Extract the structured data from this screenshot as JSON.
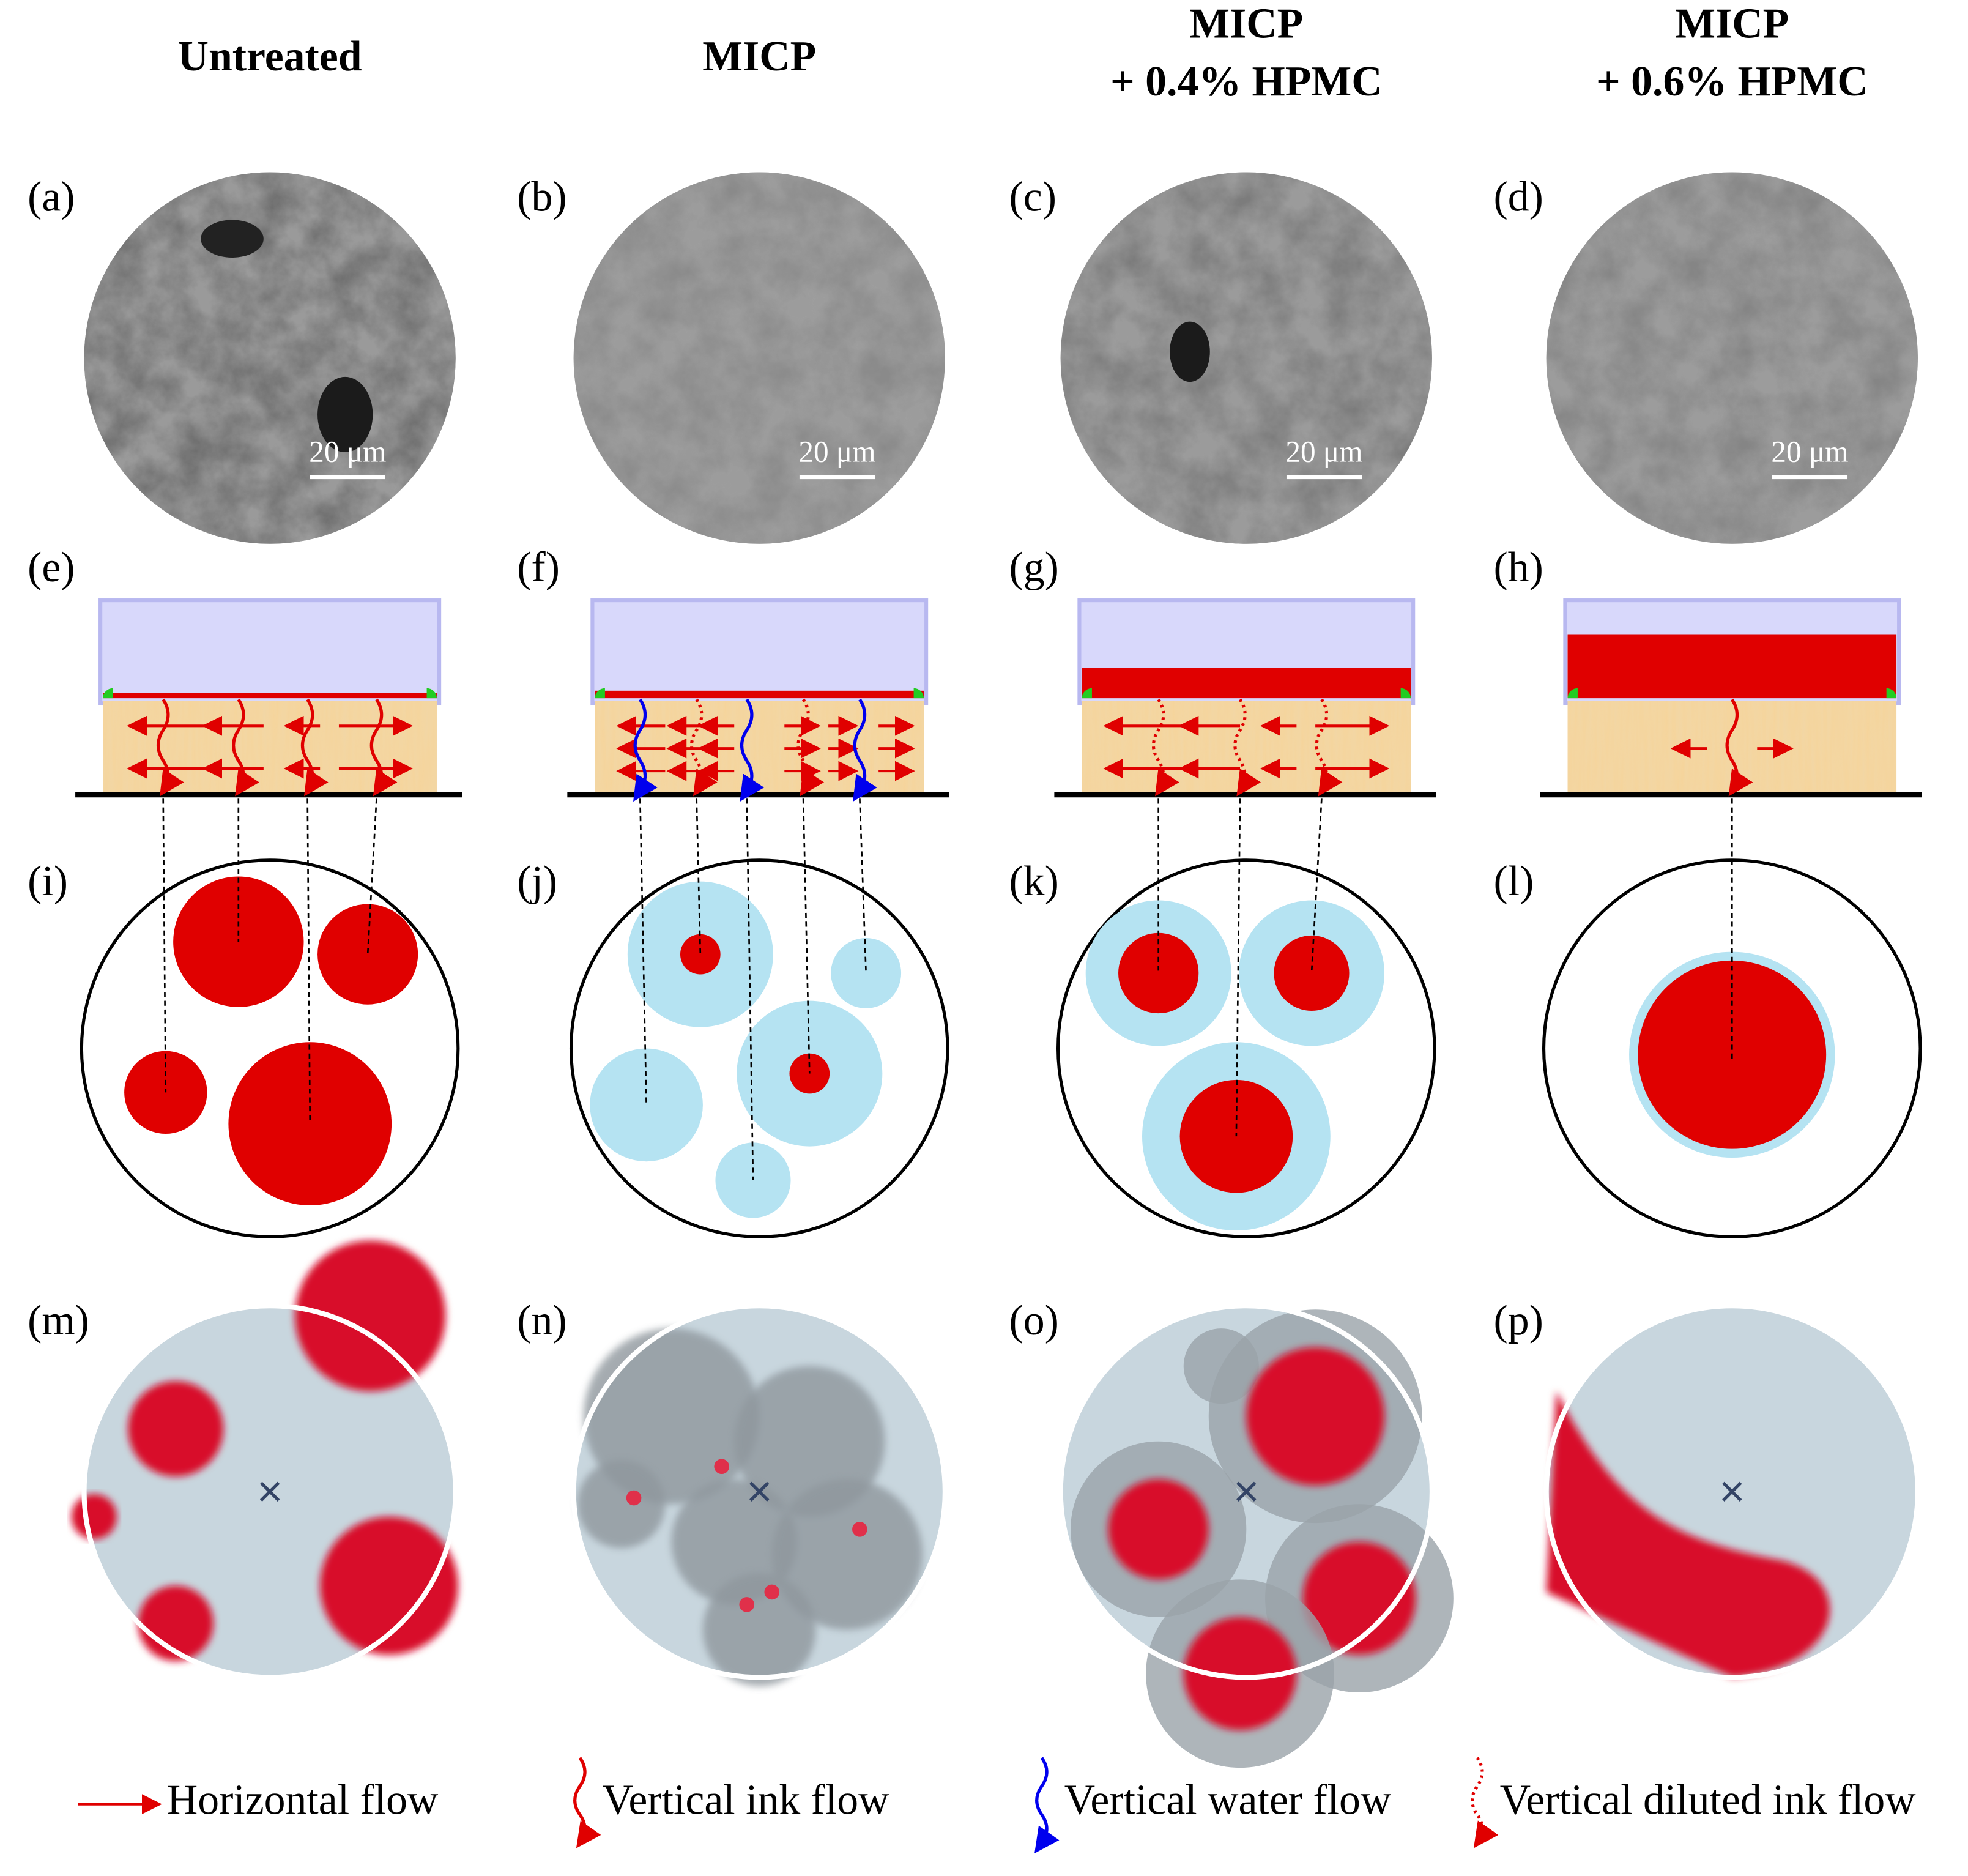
{
  "columns": [
    {
      "title": [
        "Untreated"
      ]
    },
    {
      "title": [
        "MICP"
      ]
    },
    {
      "title": [
        "MICP",
        "+ 0.4% HPMC"
      ]
    },
    {
      "title": [
        "MICP",
        "+ 0.6% HPMC"
      ]
    }
  ],
  "panel_labels": [
    [
      "(a)",
      "(b)",
      "(c)",
      "(d)"
    ],
    [
      "(e)",
      "(f)",
      "(g)",
      "(h)"
    ],
    [
      "(i)",
      "(j)",
      "(k)",
      "(l)"
    ],
    [
      "(m)",
      "(n)",
      "(o)",
      "(p)"
    ]
  ],
  "scale_bars": [
    "20 μm",
    "20 μm",
    "20 μm",
    "20 μm"
  ],
  "legend": [
    "Horizontal flow",
    "Vertical ink flow",
    "Vertical water flow",
    "Vertical diluted ink flow"
  ]
}
